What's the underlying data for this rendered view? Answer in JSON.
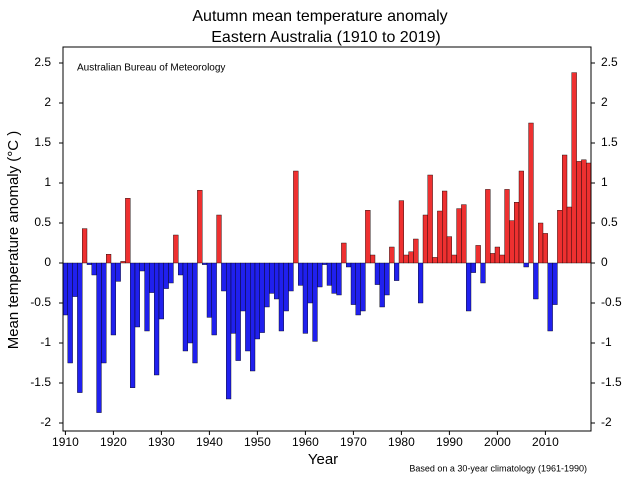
{
  "chart_data": {
    "type": "bar",
    "title": "Autumn mean temperature anomaly",
    "subtitle": "Eastern Australia (1910 to 2019)",
    "ylabel": "Mean temperature anomaly (°C )",
    "xlabel": "Year",
    "annotation": "Australian Bureau of Meteorology",
    "footnote": "Based on a 30-year climatology (1961-1990)",
    "positive_color": "#ee3030",
    "negative_color": "#2020ee",
    "x": [
      1910,
      1911,
      1912,
      1913,
      1914,
      1915,
      1916,
      1917,
      1918,
      1919,
      1920,
      1921,
      1922,
      1923,
      1924,
      1925,
      1926,
      1927,
      1928,
      1929,
      1930,
      1931,
      1932,
      1933,
      1934,
      1935,
      1936,
      1937,
      1938,
      1939,
      1940,
      1941,
      1942,
      1943,
      1944,
      1945,
      1946,
      1947,
      1948,
      1949,
      1950,
      1951,
      1952,
      1953,
      1954,
      1955,
      1956,
      1957,
      1958,
      1959,
      1960,
      1961,
      1962,
      1963,
      1964,
      1965,
      1966,
      1967,
      1968,
      1969,
      1970,
      1971,
      1972,
      1973,
      1974,
      1975,
      1976,
      1977,
      1978,
      1979,
      1980,
      1981,
      1982,
      1983,
      1984,
      1985,
      1986,
      1987,
      1988,
      1989,
      1990,
      1991,
      1992,
      1993,
      1994,
      1995,
      1996,
      1997,
      1998,
      1999,
      2000,
      2001,
      2002,
      2003,
      2004,
      2005,
      2006,
      2007,
      2008,
      2009,
      2010,
      2011,
      2012,
      2013,
      2014,
      2015,
      2016,
      2017,
      2018,
      2019
    ],
    "values": [
      -0.65,
      -1.25,
      -0.42,
      -1.62,
      0.43,
      -0.02,
      -0.15,
      -1.87,
      -1.25,
      0.11,
      -0.9,
      -0.23,
      0.02,
      0.81,
      -1.56,
      -0.8,
      -0.1,
      -0.85,
      -0.37,
      -1.4,
      -0.7,
      -0.32,
      -0.25,
      0.35,
      -0.15,
      -1.1,
      -1.0,
      -1.25,
      0.91,
      -0.02,
      -0.68,
      -0.9,
      0.6,
      -0.35,
      -1.7,
      -0.88,
      -1.22,
      -0.6,
      -1.1,
      -1.35,
      -0.95,
      -0.87,
      -0.55,
      -0.38,
      -0.45,
      -0.85,
      -0.6,
      -0.35,
      1.15,
      -0.28,
      -0.88,
      -0.5,
      -0.98,
      -0.3,
      -0.02,
      -0.28,
      -0.38,
      -0.4,
      0.25,
      -0.05,
      -0.52,
      -0.65,
      -0.6,
      0.66,
      0.1,
      -0.27,
      -0.55,
      -0.4,
      0.2,
      -0.22,
      0.78,
      0.1,
      0.14,
      0.3,
      -0.5,
      0.6,
      1.1,
      0.07,
      0.65,
      0.9,
      0.33,
      0.1,
      0.68,
      0.73,
      -0.6,
      -0.12,
      0.22,
      -0.25,
      0.92,
      0.12,
      0.2,
      0.1,
      0.92,
      0.53,
      0.76,
      1.15,
      -0.05,
      1.75,
      -0.45,
      0.5,
      0.37,
      -0.85,
      -0.52,
      0.66,
      1.35,
      0.7,
      2.38,
      1.27,
      1.29,
      1.25
    ],
    "xlim": [
      1909.5,
      2019.5
    ],
    "xticks": [
      1910,
      1920,
      1930,
      1940,
      1950,
      1960,
      1970,
      1980,
      1990,
      2000,
      2010
    ],
    "ylim": [
      -2.1,
      2.7
    ],
    "yticks": [
      -2,
      -1.5,
      -1,
      -0.5,
      0,
      0.5,
      1,
      1.5,
      2,
      2.5
    ],
    "right_axis": true
  }
}
